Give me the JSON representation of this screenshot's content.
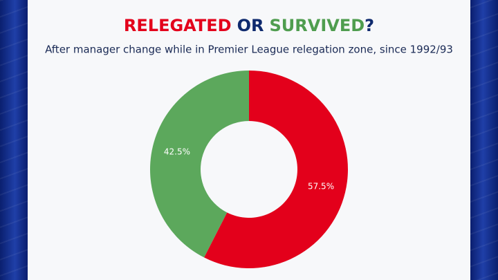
{
  "chart_data": {
    "type": "donut",
    "title_parts": [
      {
        "text": "RELEGATED",
        "color": "#e3001b"
      },
      {
        "text": "OR",
        "color": "#0f2a6e"
      },
      {
        "text": "SURVIVED",
        "color": "#4f9d4f"
      },
      {
        "text": "?",
        "color": "#0f2a6e"
      }
    ],
    "subtitle": "After manager change while in Premier League relegation zone, since 1992/93",
    "values": [
      57.5,
      42.5
    ],
    "value_labels": [
      "57.5%",
      "42.5%"
    ],
    "colors": [
      "#e3001b",
      "#5ca85c"
    ]
  }
}
